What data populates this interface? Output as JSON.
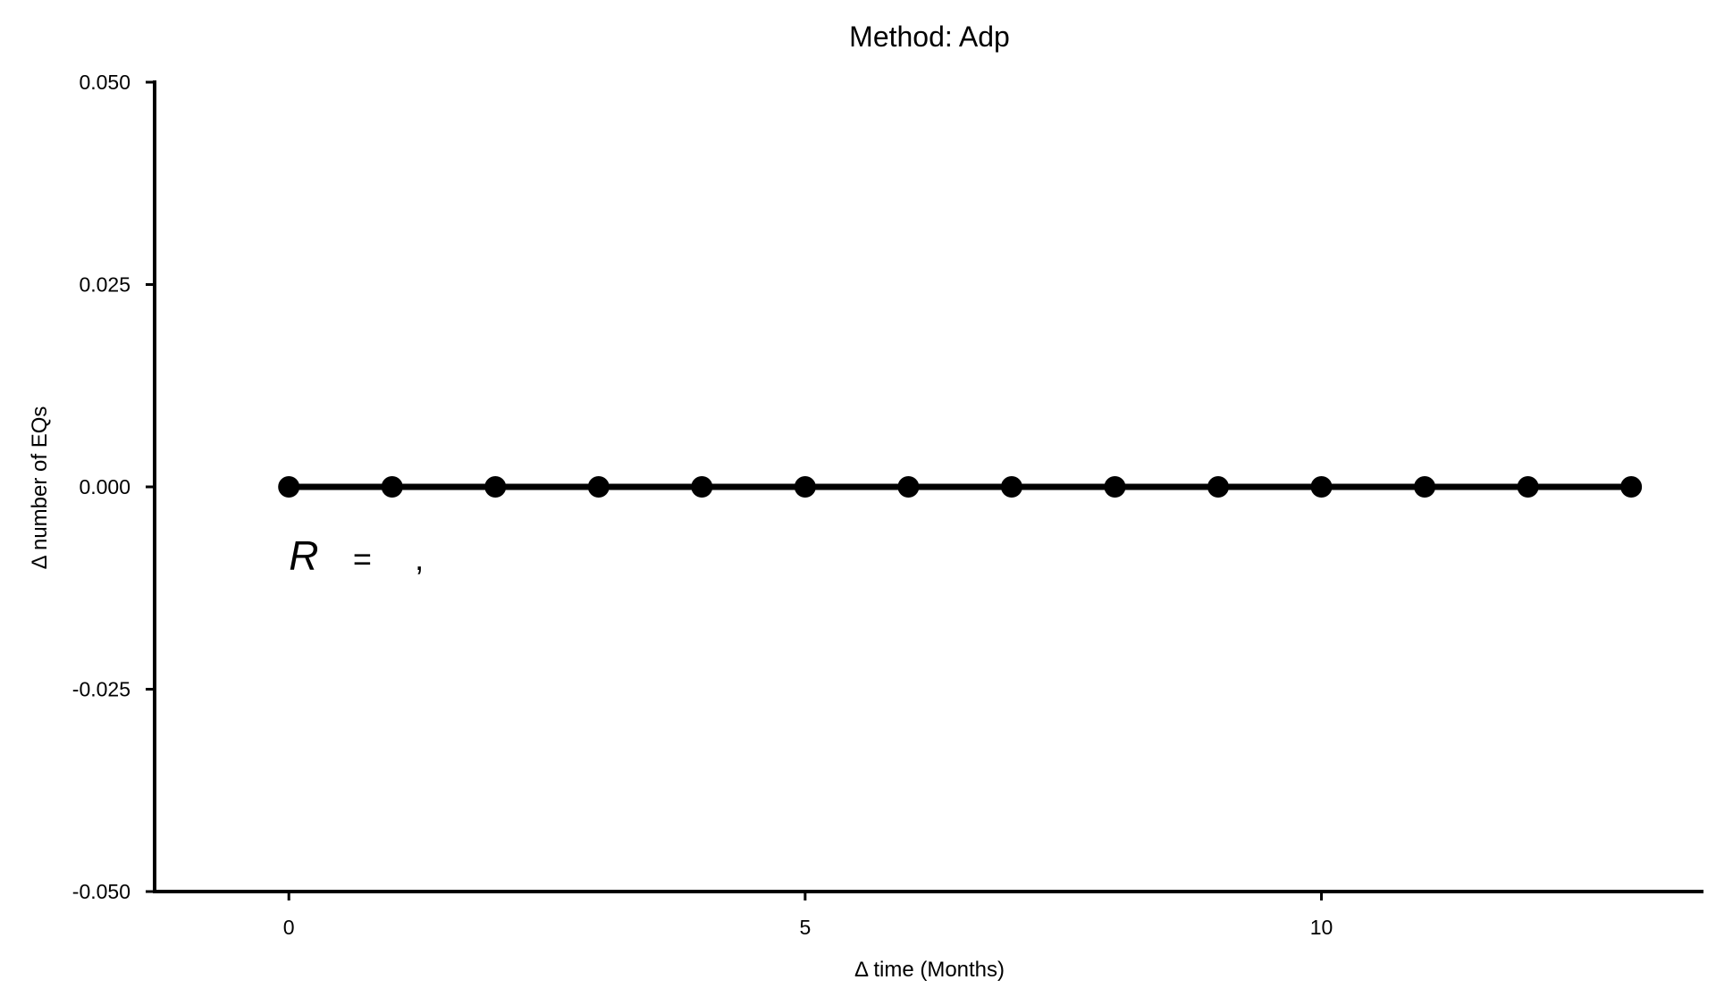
{
  "chart_data": {
    "type": "line",
    "title": "Method: Adp",
    "xlabel": "Δ time (Months)",
    "ylabel": "Δ number of EQs",
    "xlim": [
      -1.3,
      13.7
    ],
    "ylim": [
      -0.05,
      0.05
    ],
    "x_ticks": [
      0,
      5,
      10
    ],
    "x_tick_labels": [
      "0",
      "5",
      "10"
    ],
    "y_ticks": [
      -0.05,
      -0.025,
      0,
      0.025,
      0.05
    ],
    "y_tick_labels": [
      "-0.050",
      "-0.025",
      "0.000",
      "0.025",
      "0.050"
    ],
    "grid": false,
    "series": [
      {
        "x": [
          0,
          1,
          2,
          3,
          4,
          5,
          6,
          7,
          8,
          9,
          10,
          11,
          12,
          13
        ],
        "values": [
          0,
          0,
          0,
          0,
          0,
          0,
          0,
          0,
          0,
          0,
          0,
          0,
          0,
          0
        ],
        "color": "#000000",
        "marker": "circle"
      }
    ],
    "annotations": [
      {
        "text": "R",
        "style": "italic",
        "x": 0,
        "y": -0.0085
      },
      {
        "text": "=",
        "x": 0.62,
        "y": -0.0085
      },
      {
        "text": ",",
        "x": 1.22,
        "y": -0.0085
      }
    ]
  }
}
